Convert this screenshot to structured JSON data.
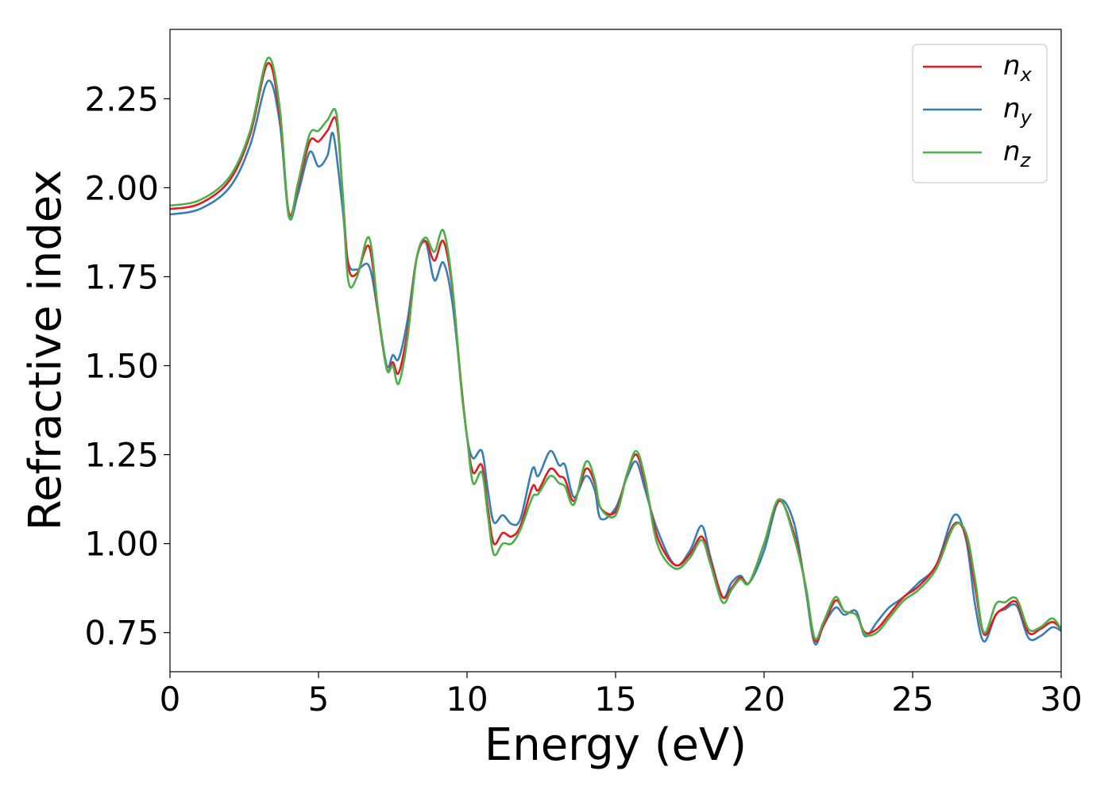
{
  "chart_data": {
    "type": "line",
    "title": "",
    "xlabel": "Energy (eV)",
    "ylabel": "Refractive index",
    "xlim": [
      0,
      30
    ],
    "ylim": [
      0.64,
      2.445
    ],
    "xticks": [
      0,
      5,
      10,
      15,
      20,
      25,
      30
    ],
    "xtick_labels": [
      "0",
      "5",
      "10",
      "15",
      "20",
      "25",
      "30"
    ],
    "yticks": [
      0.75,
      1.0,
      1.25,
      1.5,
      1.75,
      2.0,
      2.25
    ],
    "ytick_labels": [
      "0.75",
      "1.00",
      "1.25",
      "1.50",
      "1.75",
      "2.00",
      "2.25"
    ],
    "grid": false,
    "legend_position": "top-right",
    "series": [
      {
        "name": "n_x",
        "label_base": "n",
        "label_sub": "x",
        "color": "#e41a1c",
        "points": [
          [
            0,
            1.94
          ],
          [
            1,
            1.955
          ],
          [
            2,
            2.02
          ],
          [
            2.7,
            2.15
          ],
          [
            3.3,
            2.35
          ],
          [
            3.7,
            2.2
          ],
          [
            4.0,
            1.93
          ],
          [
            4.3,
            2.0
          ],
          [
            4.7,
            2.13
          ],
          [
            5.0,
            2.13
          ],
          [
            5.3,
            2.16
          ],
          [
            5.6,
            2.19
          ],
          [
            5.8,
            2.0
          ],
          [
            6.0,
            1.78
          ],
          [
            6.3,
            1.76
          ],
          [
            6.7,
            1.835
          ],
          [
            7.0,
            1.65
          ],
          [
            7.3,
            1.49
          ],
          [
            7.5,
            1.51
          ],
          [
            7.7,
            1.48
          ],
          [
            8.0,
            1.6
          ],
          [
            8.3,
            1.8
          ],
          [
            8.6,
            1.85
          ],
          [
            8.9,
            1.795
          ],
          [
            9.2,
            1.85
          ],
          [
            9.5,
            1.72
          ],
          [
            9.8,
            1.45
          ],
          [
            10.0,
            1.3
          ],
          [
            10.2,
            1.2
          ],
          [
            10.5,
            1.22
          ],
          [
            10.7,
            1.1
          ],
          [
            10.9,
            1.0
          ],
          [
            11.2,
            1.03
          ],
          [
            11.5,
            1.02
          ],
          [
            11.8,
            1.05
          ],
          [
            12.2,
            1.16
          ],
          [
            12.4,
            1.15
          ],
          [
            12.8,
            1.21
          ],
          [
            13.1,
            1.19
          ],
          [
            13.3,
            1.18
          ],
          [
            13.6,
            1.12
          ],
          [
            14.0,
            1.21
          ],
          [
            14.3,
            1.17
          ],
          [
            14.5,
            1.1
          ],
          [
            15.0,
            1.09
          ],
          [
            15.4,
            1.2
          ],
          [
            15.7,
            1.25
          ],
          [
            16.0,
            1.17
          ],
          [
            16.4,
            1.02
          ],
          [
            17.0,
            0.94
          ],
          [
            17.5,
            0.97
          ],
          [
            17.9,
            1.02
          ],
          [
            18.2,
            0.95
          ],
          [
            18.6,
            0.85
          ],
          [
            18.9,
            0.875
          ],
          [
            19.2,
            0.905
          ],
          [
            19.5,
            0.89
          ],
          [
            20.0,
            1.0
          ],
          [
            20.5,
            1.12
          ],
          [
            21.0,
            1.03
          ],
          [
            21.4,
            0.88
          ],
          [
            21.7,
            0.73
          ],
          [
            22.0,
            0.77
          ],
          [
            22.4,
            0.84
          ],
          [
            22.7,
            0.81
          ],
          [
            23.1,
            0.8
          ],
          [
            23.4,
            0.75
          ],
          [
            23.8,
            0.76
          ],
          [
            24.2,
            0.8
          ],
          [
            24.7,
            0.85
          ],
          [
            25.2,
            0.88
          ],
          [
            25.8,
            0.94
          ],
          [
            26.4,
            1.055
          ],
          [
            26.8,
            1.02
          ],
          [
            27.1,
            0.88
          ],
          [
            27.4,
            0.745
          ],
          [
            27.8,
            0.8
          ],
          [
            28.1,
            0.82
          ],
          [
            28.5,
            0.835
          ],
          [
            28.9,
            0.75
          ],
          [
            29.3,
            0.76
          ],
          [
            29.7,
            0.78
          ],
          [
            30.0,
            0.76
          ]
        ]
      },
      {
        "name": "n_y",
        "label_base": "n",
        "label_sub": "y",
        "color": "#377eb8",
        "points": [
          [
            0,
            1.925
          ],
          [
            1,
            1.94
          ],
          [
            2,
            2.0
          ],
          [
            2.7,
            2.12
          ],
          [
            3.3,
            2.3
          ],
          [
            3.7,
            2.18
          ],
          [
            4.0,
            1.92
          ],
          [
            4.3,
            1.98
          ],
          [
            4.7,
            2.1
          ],
          [
            5.0,
            2.06
          ],
          [
            5.3,
            2.09
          ],
          [
            5.5,
            2.15
          ],
          [
            5.8,
            1.95
          ],
          [
            6.0,
            1.79
          ],
          [
            6.3,
            1.77
          ],
          [
            6.7,
            1.78
          ],
          [
            7.0,
            1.65
          ],
          [
            7.3,
            1.5
          ],
          [
            7.5,
            1.53
          ],
          [
            7.7,
            1.52
          ],
          [
            8.0,
            1.63
          ],
          [
            8.3,
            1.8
          ],
          [
            8.6,
            1.85
          ],
          [
            8.9,
            1.74
          ],
          [
            9.2,
            1.79
          ],
          [
            9.5,
            1.68
          ],
          [
            9.8,
            1.45
          ],
          [
            10.0,
            1.3
          ],
          [
            10.2,
            1.24
          ],
          [
            10.5,
            1.26
          ],
          [
            10.7,
            1.15
          ],
          [
            10.9,
            1.06
          ],
          [
            11.2,
            1.08
          ],
          [
            11.5,
            1.055
          ],
          [
            11.8,
            1.07
          ],
          [
            12.2,
            1.21
          ],
          [
            12.4,
            1.19
          ],
          [
            12.8,
            1.26
          ],
          [
            13.1,
            1.22
          ],
          [
            13.3,
            1.22
          ],
          [
            13.6,
            1.13
          ],
          [
            14.0,
            1.19
          ],
          [
            14.3,
            1.15
          ],
          [
            14.5,
            1.07
          ],
          [
            15.0,
            1.1
          ],
          [
            15.4,
            1.19
          ],
          [
            15.7,
            1.23
          ],
          [
            16.0,
            1.15
          ],
          [
            16.4,
            1.04
          ],
          [
            17.0,
            0.94
          ],
          [
            17.5,
            0.98
          ],
          [
            17.9,
            1.05
          ],
          [
            18.2,
            0.96
          ],
          [
            18.6,
            0.85
          ],
          [
            18.9,
            0.89
          ],
          [
            19.2,
            0.91
          ],
          [
            19.5,
            0.89
          ],
          [
            20.0,
            0.98
          ],
          [
            20.5,
            1.12
          ],
          [
            21.0,
            1.06
          ],
          [
            21.4,
            0.87
          ],
          [
            21.7,
            0.72
          ],
          [
            22.0,
            0.77
          ],
          [
            22.4,
            0.82
          ],
          [
            22.7,
            0.8
          ],
          [
            23.1,
            0.81
          ],
          [
            23.4,
            0.74
          ],
          [
            23.8,
            0.78
          ],
          [
            24.2,
            0.82
          ],
          [
            24.7,
            0.85
          ],
          [
            25.2,
            0.89
          ],
          [
            25.8,
            0.94
          ],
          [
            26.4,
            1.08
          ],
          [
            26.8,
            1.01
          ],
          [
            27.1,
            0.83
          ],
          [
            27.4,
            0.725
          ],
          [
            27.8,
            0.8
          ],
          [
            28.1,
            0.815
          ],
          [
            28.5,
            0.825
          ],
          [
            28.9,
            0.735
          ],
          [
            29.3,
            0.74
          ],
          [
            29.7,
            0.765
          ],
          [
            30.0,
            0.755
          ]
        ]
      },
      {
        "name": "n_z",
        "label_base": "n",
        "label_sub": "z",
        "color": "#4daf4a",
        "points": [
          [
            0,
            1.95
          ],
          [
            1,
            1.965
          ],
          [
            2,
            2.03
          ],
          [
            2.7,
            2.16
          ],
          [
            3.3,
            2.365
          ],
          [
            3.7,
            2.22
          ],
          [
            4.0,
            1.92
          ],
          [
            4.3,
            2.01
          ],
          [
            4.7,
            2.15
          ],
          [
            5.0,
            2.16
          ],
          [
            5.3,
            2.19
          ],
          [
            5.6,
            2.21
          ],
          [
            5.8,
            2.0
          ],
          [
            6.0,
            1.74
          ],
          [
            6.3,
            1.75
          ],
          [
            6.7,
            1.86
          ],
          [
            7.0,
            1.66
          ],
          [
            7.3,
            1.49
          ],
          [
            7.5,
            1.5
          ],
          [
            7.7,
            1.45
          ],
          [
            8.0,
            1.58
          ],
          [
            8.3,
            1.8
          ],
          [
            8.6,
            1.86
          ],
          [
            8.9,
            1.82
          ],
          [
            9.2,
            1.88
          ],
          [
            9.5,
            1.73
          ],
          [
            9.8,
            1.44
          ],
          [
            10.0,
            1.3
          ],
          [
            10.2,
            1.17
          ],
          [
            10.5,
            1.2
          ],
          [
            10.7,
            1.08
          ],
          [
            10.9,
            0.97
          ],
          [
            11.2,
            1.0
          ],
          [
            11.5,
            1.0
          ],
          [
            11.8,
            1.04
          ],
          [
            12.2,
            1.13
          ],
          [
            12.4,
            1.14
          ],
          [
            12.8,
            1.19
          ],
          [
            13.1,
            1.17
          ],
          [
            13.3,
            1.16
          ],
          [
            13.6,
            1.11
          ],
          [
            14.0,
            1.23
          ],
          [
            14.3,
            1.18
          ],
          [
            14.5,
            1.1
          ],
          [
            15.0,
            1.08
          ],
          [
            15.4,
            1.2
          ],
          [
            15.7,
            1.26
          ],
          [
            16.0,
            1.18
          ],
          [
            16.4,
            1.0
          ],
          [
            17.0,
            0.93
          ],
          [
            17.5,
            0.96
          ],
          [
            17.9,
            1.01
          ],
          [
            18.2,
            0.94
          ],
          [
            18.6,
            0.835
          ],
          [
            18.9,
            0.87
          ],
          [
            19.2,
            0.9
          ],
          [
            19.5,
            0.89
          ],
          [
            20.0,
            1.0
          ],
          [
            20.5,
            1.125
          ],
          [
            21.0,
            1.02
          ],
          [
            21.4,
            0.88
          ],
          [
            21.7,
            0.735
          ],
          [
            22.0,
            0.78
          ],
          [
            22.4,
            0.85
          ],
          [
            22.7,
            0.81
          ],
          [
            23.1,
            0.8
          ],
          [
            23.4,
            0.745
          ],
          [
            23.8,
            0.75
          ],
          [
            24.2,
            0.79
          ],
          [
            24.7,
            0.84
          ],
          [
            25.2,
            0.87
          ],
          [
            25.8,
            0.93
          ],
          [
            26.4,
            1.05
          ],
          [
            26.8,
            1.03
          ],
          [
            27.1,
            0.9
          ],
          [
            27.4,
            0.75
          ],
          [
            27.8,
            0.83
          ],
          [
            28.1,
            0.835
          ],
          [
            28.5,
            0.845
          ],
          [
            28.9,
            0.76
          ],
          [
            29.3,
            0.765
          ],
          [
            29.7,
            0.79
          ],
          [
            30.0,
            0.76
          ]
        ]
      }
    ]
  }
}
